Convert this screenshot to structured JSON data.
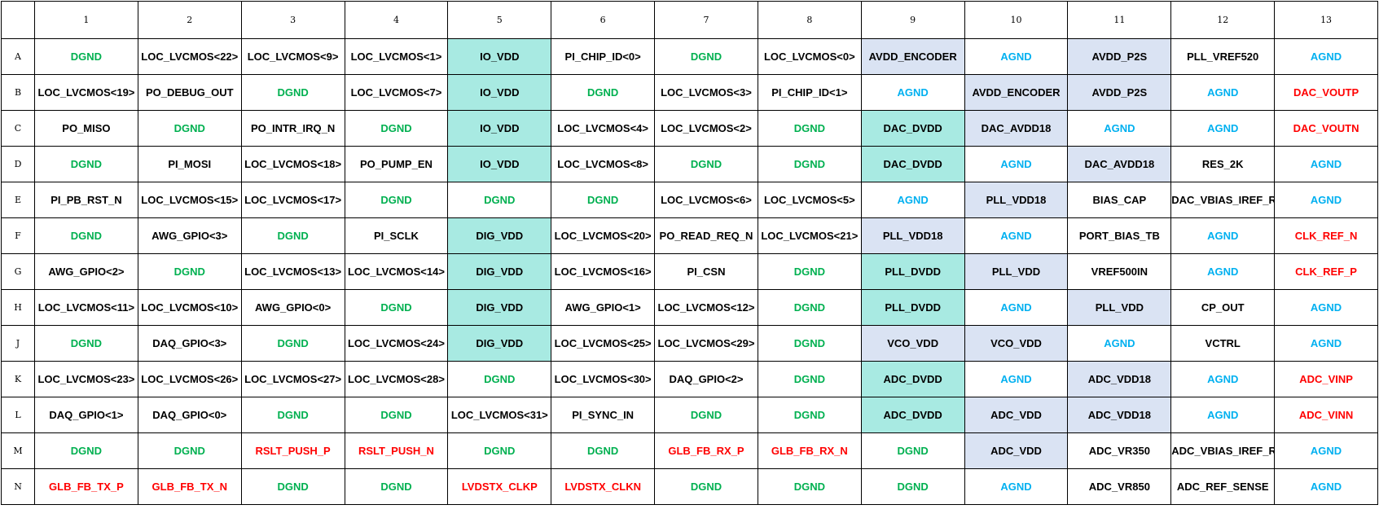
{
  "colors": {
    "green": "#00B050",
    "blue": "#00B0F0",
    "red": "#FF0000",
    "teal": "#A8EAE2",
    "lav": "#DAE3F3"
  },
  "columns": [
    "1",
    "2",
    "3",
    "4",
    "5",
    "6",
    "7",
    "8",
    "9",
    "10",
    "11",
    "12",
    "13"
  ],
  "rows": [
    {
      "label": "A",
      "cells": [
        [
          "DGND",
          "green",
          ""
        ],
        [
          "LOC_LVCMOS<22>",
          "black",
          ""
        ],
        [
          "LOC_LVCMOS<9>",
          "black",
          ""
        ],
        [
          "LOC_LVCMOS<1>",
          "black",
          ""
        ],
        [
          "IO_VDD",
          "black",
          "teal"
        ],
        [
          "PI_CHIP_ID<0>",
          "black",
          ""
        ],
        [
          "DGND",
          "green",
          ""
        ],
        [
          "LOC_LVCMOS<0>",
          "black",
          ""
        ],
        [
          "AVDD_ENCODER",
          "black",
          "lav"
        ],
        [
          "AGND",
          "blue",
          ""
        ],
        [
          "AVDD_P2S",
          "black",
          "lav"
        ],
        [
          "PLL_VREF520",
          "black",
          ""
        ],
        [
          "AGND",
          "blue",
          ""
        ]
      ]
    },
    {
      "label": "B",
      "cells": [
        [
          "LOC_LVCMOS<19>",
          "black",
          ""
        ],
        [
          "PO_DEBUG_OUT",
          "black",
          ""
        ],
        [
          "DGND",
          "green",
          ""
        ],
        [
          "LOC_LVCMOS<7>",
          "black",
          ""
        ],
        [
          "IO_VDD",
          "black",
          "teal"
        ],
        [
          "DGND",
          "green",
          ""
        ],
        [
          "LOC_LVCMOS<3>",
          "black",
          ""
        ],
        [
          "PI_CHIP_ID<1>",
          "black",
          ""
        ],
        [
          "AGND",
          "blue",
          ""
        ],
        [
          "AVDD_ENCODER",
          "black",
          "lav"
        ],
        [
          "AVDD_P2S",
          "black",
          "lav"
        ],
        [
          "AGND",
          "blue",
          ""
        ],
        [
          "DAC_VOUTP",
          "red",
          ""
        ]
      ]
    },
    {
      "label": "C",
      "cells": [
        [
          "PO_MISO",
          "black",
          ""
        ],
        [
          "DGND",
          "green",
          ""
        ],
        [
          "PO_INTR_IRQ_N",
          "black",
          ""
        ],
        [
          "DGND",
          "green",
          ""
        ],
        [
          "IO_VDD",
          "black",
          "teal"
        ],
        [
          "LOC_LVCMOS<4>",
          "black",
          ""
        ],
        [
          "LOC_LVCMOS<2>",
          "black",
          ""
        ],
        [
          "DGND",
          "green",
          ""
        ],
        [
          "DAC_DVDD",
          "black",
          "teal"
        ],
        [
          "DAC_AVDD18",
          "black",
          "lav"
        ],
        [
          "AGND",
          "blue",
          ""
        ],
        [
          "AGND",
          "blue",
          ""
        ],
        [
          "DAC_VOUTN",
          "red",
          ""
        ]
      ]
    },
    {
      "label": "D",
      "cells": [
        [
          "DGND",
          "green",
          ""
        ],
        [
          "PI_MOSI",
          "black",
          ""
        ],
        [
          "LOC_LVCMOS<18>",
          "black",
          ""
        ],
        [
          "PO_PUMP_EN",
          "black",
          ""
        ],
        [
          "IO_VDD",
          "black",
          "teal"
        ],
        [
          "LOC_LVCMOS<8>",
          "black",
          ""
        ],
        [
          "DGND",
          "green",
          ""
        ],
        [
          "DGND",
          "green",
          ""
        ],
        [
          "DAC_DVDD",
          "black",
          "teal"
        ],
        [
          "AGND",
          "blue",
          ""
        ],
        [
          "DAC_AVDD18",
          "black",
          "lav"
        ],
        [
          "RES_2K",
          "black",
          ""
        ],
        [
          "AGND",
          "blue",
          ""
        ]
      ]
    },
    {
      "label": "E",
      "cells": [
        [
          "PI_PB_RST_N",
          "black",
          ""
        ],
        [
          "LOC_LVCMOS<15>",
          "black",
          ""
        ],
        [
          "LOC_LVCMOS<17>",
          "black",
          ""
        ],
        [
          "DGND",
          "green",
          ""
        ],
        [
          "DGND",
          "green",
          ""
        ],
        [
          "DGND",
          "green",
          ""
        ],
        [
          "LOC_LVCMOS<6>",
          "black",
          ""
        ],
        [
          "LOC_LVCMOS<5>",
          "black",
          ""
        ],
        [
          "AGND",
          "blue",
          ""
        ],
        [
          "PLL_VDD18",
          "black",
          "lav"
        ],
        [
          "BIAS_CAP",
          "black",
          ""
        ],
        [
          "DAC_VBIAS_IREF_RES",
          "black",
          ""
        ],
        [
          "AGND",
          "blue",
          ""
        ]
      ]
    },
    {
      "label": "F",
      "cells": [
        [
          "DGND",
          "green",
          ""
        ],
        [
          "AWG_GPIO<3>",
          "black",
          ""
        ],
        [
          "DGND",
          "green",
          ""
        ],
        [
          "PI_SCLK",
          "black",
          ""
        ],
        [
          "DIG_VDD",
          "black",
          "teal"
        ],
        [
          "LOC_LVCMOS<20>",
          "black",
          ""
        ],
        [
          "PO_READ_REQ_N",
          "black",
          ""
        ],
        [
          "LOC_LVCMOS<21>",
          "black",
          ""
        ],
        [
          "PLL_VDD18",
          "black",
          "lav"
        ],
        [
          "AGND",
          "blue",
          ""
        ],
        [
          "PORT_BIAS_TB",
          "black",
          ""
        ],
        [
          "AGND",
          "blue",
          ""
        ],
        [
          "CLK_REF_N",
          "red",
          ""
        ]
      ]
    },
    {
      "label": "G",
      "cells": [
        [
          "AWG_GPIO<2>",
          "black",
          ""
        ],
        [
          "DGND",
          "green",
          ""
        ],
        [
          "LOC_LVCMOS<13>",
          "black",
          ""
        ],
        [
          "LOC_LVCMOS<14>",
          "black",
          ""
        ],
        [
          "DIG_VDD",
          "black",
          "teal"
        ],
        [
          "LOC_LVCMOS<16>",
          "black",
          ""
        ],
        [
          "PI_CSN",
          "black",
          ""
        ],
        [
          "DGND",
          "green",
          ""
        ],
        [
          "PLL_DVDD",
          "black",
          "teal"
        ],
        [
          "PLL_VDD",
          "black",
          "lav"
        ],
        [
          "VREF500IN",
          "black",
          ""
        ],
        [
          "AGND",
          "blue",
          ""
        ],
        [
          "CLK_REF_P",
          "red",
          ""
        ]
      ]
    },
    {
      "label": "H",
      "cells": [
        [
          "LOC_LVCMOS<11>",
          "black",
          ""
        ],
        [
          "LOC_LVCMOS<10>",
          "black",
          ""
        ],
        [
          "AWG_GPIO<0>",
          "black",
          ""
        ],
        [
          "DGND",
          "green",
          ""
        ],
        [
          "DIG_VDD",
          "black",
          "teal"
        ],
        [
          "AWG_GPIO<1>",
          "black",
          ""
        ],
        [
          "LOC_LVCMOS<12>",
          "black",
          ""
        ],
        [
          "DGND",
          "green",
          ""
        ],
        [
          "PLL_DVDD",
          "black",
          "teal"
        ],
        [
          "AGND",
          "blue",
          ""
        ],
        [
          "PLL_VDD",
          "black",
          "lav"
        ],
        [
          "CP_OUT",
          "black",
          ""
        ],
        [
          "AGND",
          "blue",
          ""
        ]
      ]
    },
    {
      "label": "J",
      "cells": [
        [
          "DGND",
          "green",
          ""
        ],
        [
          "DAQ_GPIO<3>",
          "black",
          ""
        ],
        [
          "DGND",
          "green",
          ""
        ],
        [
          "LOC_LVCMOS<24>",
          "black",
          ""
        ],
        [
          "DIG_VDD",
          "black",
          "teal"
        ],
        [
          "LOC_LVCMOS<25>",
          "black",
          ""
        ],
        [
          "LOC_LVCMOS<29>",
          "black",
          ""
        ],
        [
          "DGND",
          "green",
          ""
        ],
        [
          "VCO_VDD",
          "black",
          "lav"
        ],
        [
          "VCO_VDD",
          "black",
          "lav"
        ],
        [
          "AGND",
          "blue",
          ""
        ],
        [
          "VCTRL",
          "black",
          ""
        ],
        [
          "AGND",
          "blue",
          ""
        ]
      ]
    },
    {
      "label": "K",
      "cells": [
        [
          "LOC_LVCMOS<23>",
          "black",
          ""
        ],
        [
          "LOC_LVCMOS<26>",
          "black",
          ""
        ],
        [
          "LOC_LVCMOS<27>",
          "black",
          ""
        ],
        [
          "LOC_LVCMOS<28>",
          "black",
          ""
        ],
        [
          "DGND",
          "green",
          ""
        ],
        [
          "LOC_LVCMOS<30>",
          "black",
          ""
        ],
        [
          "DAQ_GPIO<2>",
          "black",
          ""
        ],
        [
          "DGND",
          "green",
          ""
        ],
        [
          "ADC_DVDD",
          "black",
          "teal"
        ],
        [
          "AGND",
          "blue",
          ""
        ],
        [
          "ADC_VDD18",
          "black",
          "lav"
        ],
        [
          "AGND",
          "blue",
          ""
        ],
        [
          "ADC_VINP",
          "red",
          ""
        ]
      ]
    },
    {
      "label": "L",
      "cells": [
        [
          "DAQ_GPIO<1>",
          "black",
          ""
        ],
        [
          "DAQ_GPIO<0>",
          "black",
          ""
        ],
        [
          "DGND",
          "green",
          ""
        ],
        [
          "DGND",
          "green",
          ""
        ],
        [
          "LOC_LVCMOS<31>",
          "black",
          ""
        ],
        [
          "PI_SYNC_IN",
          "black",
          ""
        ],
        [
          "DGND",
          "green",
          ""
        ],
        [
          "DGND",
          "green",
          ""
        ],
        [
          "ADC_DVDD",
          "black",
          "teal"
        ],
        [
          "ADC_VDD",
          "black",
          "lav"
        ],
        [
          "ADC_VDD18",
          "black",
          "lav"
        ],
        [
          "AGND",
          "blue",
          ""
        ],
        [
          "ADC_VINN",
          "red",
          ""
        ]
      ]
    },
    {
      "label": "M",
      "cells": [
        [
          "DGND",
          "green",
          ""
        ],
        [
          "DGND",
          "green",
          ""
        ],
        [
          "RSLT_PUSH_P",
          "red",
          ""
        ],
        [
          "RSLT_PUSH_N",
          "red",
          ""
        ],
        [
          "DGND",
          "green",
          ""
        ],
        [
          "DGND",
          "green",
          ""
        ],
        [
          "GLB_FB_RX_P",
          "red",
          ""
        ],
        [
          "GLB_FB_RX_N",
          "red",
          ""
        ],
        [
          "DGND",
          "green",
          ""
        ],
        [
          "ADC_VDD",
          "black",
          "lav"
        ],
        [
          "ADC_VR350",
          "black",
          ""
        ],
        [
          "ADC_VBIAS_IREF_RES",
          "black",
          ""
        ],
        [
          "AGND",
          "blue",
          ""
        ]
      ]
    },
    {
      "label": "N",
      "cells": [
        [
          "GLB_FB_TX_P",
          "red",
          ""
        ],
        [
          "GLB_FB_TX_N",
          "red",
          ""
        ],
        [
          "DGND",
          "green",
          ""
        ],
        [
          "DGND",
          "green",
          ""
        ],
        [
          "LVDSTX_CLKP",
          "red",
          ""
        ],
        [
          "LVDSTX_CLKN",
          "red",
          ""
        ],
        [
          "DGND",
          "green",
          ""
        ],
        [
          "DGND",
          "green",
          ""
        ],
        [
          "DGND",
          "green",
          ""
        ],
        [
          "AGND",
          "blue",
          ""
        ],
        [
          "ADC_VR850",
          "black",
          ""
        ],
        [
          "ADC_REF_SENSE",
          "black",
          ""
        ],
        [
          "AGND",
          "blue",
          ""
        ]
      ]
    }
  ]
}
